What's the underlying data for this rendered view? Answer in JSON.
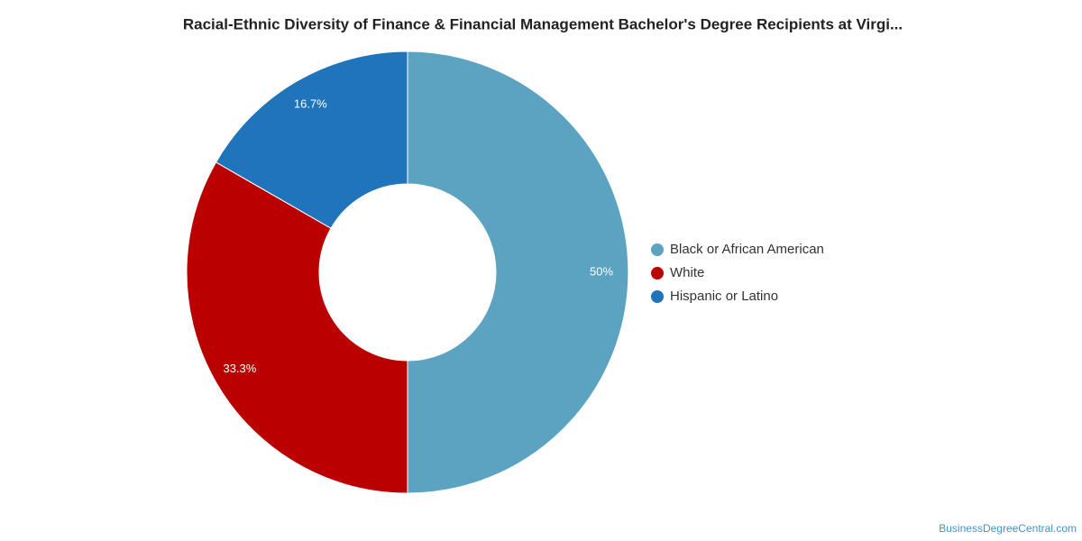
{
  "chart_data": {
    "type": "pie",
    "title": "Racial-Ethnic Diversity of Finance & Financial Management Bachelor's Degree Recipients at Virgi...",
    "categories": [
      "Black or African American",
      "White",
      "Hispanic or Latino"
    ],
    "values": [
      50,
      33.3,
      16.7
    ],
    "value_labels": [
      "50%",
      "33.3%",
      "16.7%"
    ],
    "colors": [
      "#5ba3c0",
      "#bb0000",
      "#1f74bb"
    ],
    "legend": "right",
    "source": "BusinessDegreeCentral.com"
  }
}
